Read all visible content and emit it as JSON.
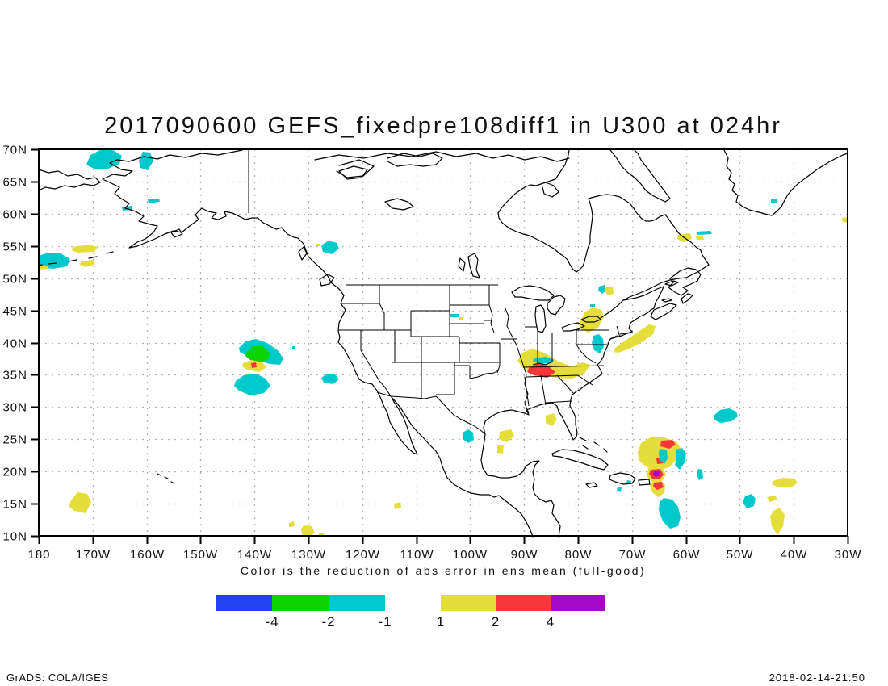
{
  "title": "2017090600 GEFS_fixedpre108diff1 in U300 at 024hr",
  "caption": "Color is the reduction of abs error in ens mean (full-good)",
  "footer": {
    "credit": "GrADS: COLA/IGES",
    "timestamp": "2018-02-14-21:50"
  },
  "map": {
    "lat_labels": [
      "70N",
      "65N",
      "60N",
      "55N",
      "50N",
      "45N",
      "40N",
      "35N",
      "30N",
      "25N",
      "20N",
      "15N",
      "10N"
    ],
    "lon_labels": [
      "180",
      "170W",
      "160W",
      "150W",
      "140W",
      "130W",
      "120W",
      "110W",
      "100W",
      "90W",
      "80W",
      "70W",
      "60W",
      "50W",
      "40W",
      "30W"
    ]
  },
  "colors": {
    "blue": "#2542f0",
    "green": "#0bd400",
    "cyan": "#00c9cc",
    "yellow": "#e5dd3a",
    "red": "#f83838",
    "purple": "#a607c9",
    "grid": "#b4b4b4",
    "coast": "#000000"
  },
  "colorbar": {
    "negative": {
      "labels": [
        "-4",
        "-2",
        "-1"
      ],
      "colors": [
        "blue",
        "green",
        "cyan"
      ]
    },
    "positive": {
      "labels": [
        "1",
        "2",
        "4"
      ],
      "colors": [
        "yellow",
        "red",
        "purple"
      ]
    }
  },
  "anomaly_regions": [
    {
      "color": "cyan",
      "approx": "168W 69N"
    },
    {
      "color": "cyan",
      "approx": "160W 69N"
    },
    {
      "color": "cyan",
      "approx": "177W 52N"
    },
    {
      "color": "yellow",
      "approx": "172W 54N"
    },
    {
      "color": "cyan",
      "approx": "126W 55N"
    },
    {
      "color": "cyan-green",
      "approx": "139W 38N"
    },
    {
      "color": "yellow-red",
      "approx": "140W 36N"
    },
    {
      "color": "cyan",
      "approx": "140W 33N"
    },
    {
      "color": "yellow-red",
      "approx": "85W 36N"
    },
    {
      "color": "yellow",
      "approx": "78W 41N"
    },
    {
      "color": "cyan",
      "approx": "70W 42N"
    },
    {
      "color": "yellow",
      "approx": "55W 56N"
    },
    {
      "color": "yellow-red-purple",
      "approx": "65W 20N"
    },
    {
      "color": "cyan",
      "approx": "64W 13N"
    },
    {
      "color": "cyan",
      "approx": "46W 29N"
    },
    {
      "color": "yellow",
      "approx": "41W 13N"
    },
    {
      "color": "yellow",
      "approx": "172W 13N"
    }
  ]
}
